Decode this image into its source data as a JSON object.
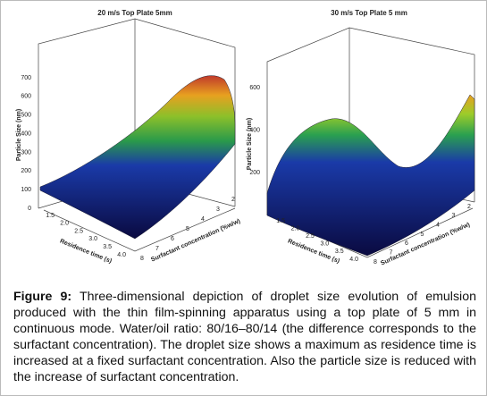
{
  "panels": [
    {
      "title": "20 m/s Top Plate 5mm",
      "z_label": "Particle Size (nm)",
      "z_ticks": [
        "0",
        "100",
        "200",
        "300",
        "400",
        "500",
        "600",
        "700"
      ],
      "x_label": "Residence time (s)",
      "x_ticks": [
        "1.5",
        "2.0",
        "2.5",
        "3.0",
        "3.5",
        "4.0"
      ],
      "y_label": "Surfactant concentration (%w/w)",
      "y_ticks": [
        "8",
        "7",
        "6",
        "5",
        "4",
        "3",
        "2"
      ]
    },
    {
      "title": "30 m/s Top Plate 5 mm",
      "z_label": "Particle Size (nm)",
      "z_ticks": [
        "200",
        "400",
        "600"
      ],
      "x_label": "Residence time (s)",
      "x_ticks": [
        "1.5",
        "2.0",
        "2.5",
        "3.0",
        "3.5",
        "4.0"
      ],
      "y_label": "Surfactant concentration (%w/w)",
      "y_ticks": [
        "8",
        "7",
        "6",
        "5",
        "4",
        "3",
        "2"
      ]
    }
  ],
  "caption": {
    "label": "Figure 9:",
    "text": "Three-dimensional depiction of droplet size evolution of emulsion produced with the thin film-spinning apparatus using a top plate of 5 mm in continuous mode. Water/oil ratio: 80/16–80/14 (the difference corresponds to the surfactant concentration). The droplet size shows a maximum as residence time is increased at a fixed surfactant concentration. Also the particle size is reduced with the increase of surfactant concentration."
  }
}
